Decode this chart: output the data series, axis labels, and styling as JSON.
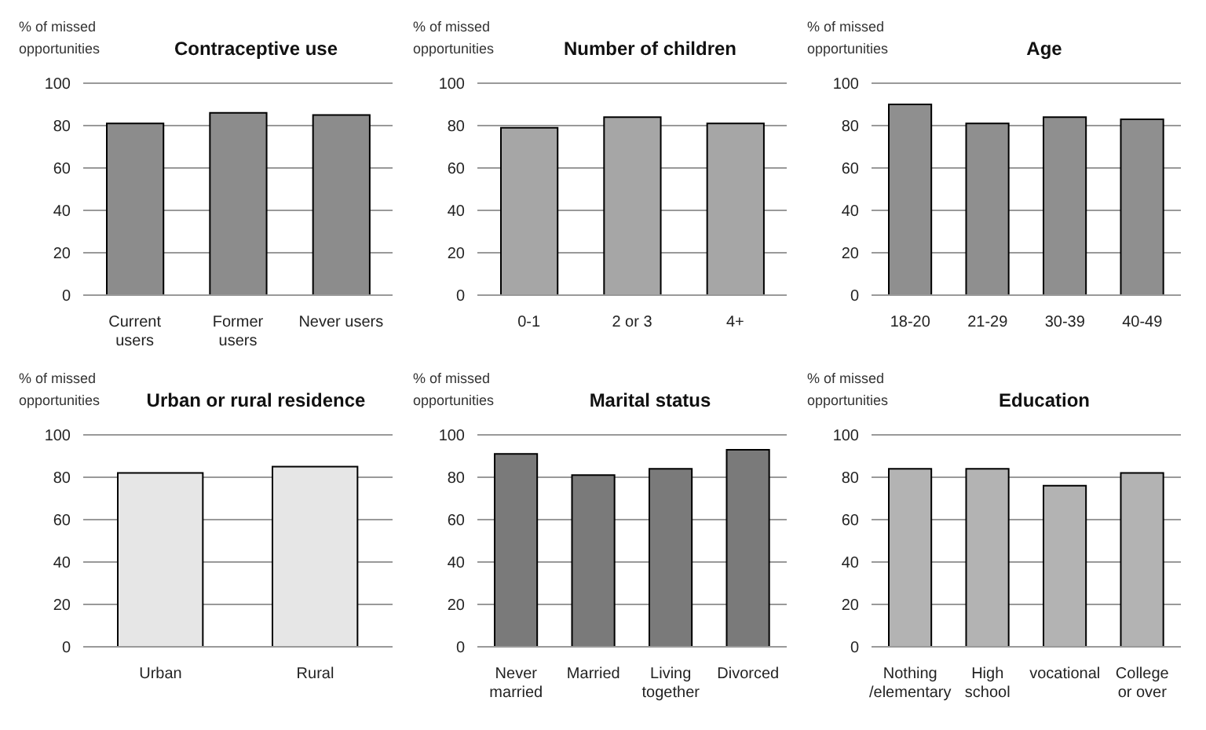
{
  "chart_data": [
    {
      "type": "bar",
      "title": "Contraceptive use",
      "ylabel": "% of missed opportunities",
      "categories": [
        "Current users",
        "Former users",
        "Never users"
      ],
      "values": [
        81,
        86,
        85
      ],
      "color": "#8c8c8c",
      "ylim": [
        0,
        100
      ],
      "yticks": [
        0,
        20,
        40,
        60,
        80,
        100
      ],
      "grid": "y",
      "legend": false
    },
    {
      "type": "bar",
      "title": "Number of children",
      "ylabel": "% of missed opportunities",
      "categories": [
        "0-1",
        "2 or 3",
        "4+"
      ],
      "values": [
        79,
        84,
        81
      ],
      "color": "#a6a6a6",
      "ylim": [
        0,
        100
      ],
      "yticks": [
        0,
        20,
        40,
        60,
        80,
        100
      ],
      "grid": "y",
      "legend": false
    },
    {
      "type": "bar",
      "title": "Age",
      "ylabel": "% of missed opportunities",
      "categories": [
        "18-20",
        "21-29",
        "30-39",
        "40-49"
      ],
      "values": [
        90,
        81,
        84,
        83
      ],
      "color": "#8f8f8f",
      "ylim": [
        0,
        100
      ],
      "yticks": [
        0,
        20,
        40,
        60,
        80,
        100
      ],
      "grid": "y",
      "legend": false
    },
    {
      "type": "bar",
      "title": "Urban or rural residence",
      "ylabel": "% of missed opportunities",
      "categories": [
        "Urban",
        "Rural"
      ],
      "values": [
        82,
        85
      ],
      "color": "#e6e6e6",
      "ylim": [
        0,
        100
      ],
      "yticks": [
        0,
        20,
        40,
        60,
        80,
        100
      ],
      "grid": "y",
      "legend": false
    },
    {
      "type": "bar",
      "title": "Marital status",
      "ylabel": "% of missed opportunities",
      "categories": [
        "Never married",
        "Married",
        "Living together",
        "Divorced"
      ],
      "values": [
        91,
        81,
        84,
        93
      ],
      "color": "#7a7a7a",
      "ylim": [
        0,
        100
      ],
      "yticks": [
        0,
        20,
        40,
        60,
        80,
        100
      ],
      "grid": "y",
      "legend": false
    },
    {
      "type": "bar",
      "title": "Education",
      "ylabel": "% of missed opportunities",
      "categories": [
        "Nothing /elementary",
        "High school",
        "vocational",
        "College or over"
      ],
      "values": [
        84,
        84,
        76,
        82
      ],
      "color": "#b3b3b3",
      "ylim": [
        0,
        100
      ],
      "yticks": [
        0,
        20,
        40,
        60,
        80,
        100
      ],
      "grid": "y",
      "legend": false
    }
  ]
}
